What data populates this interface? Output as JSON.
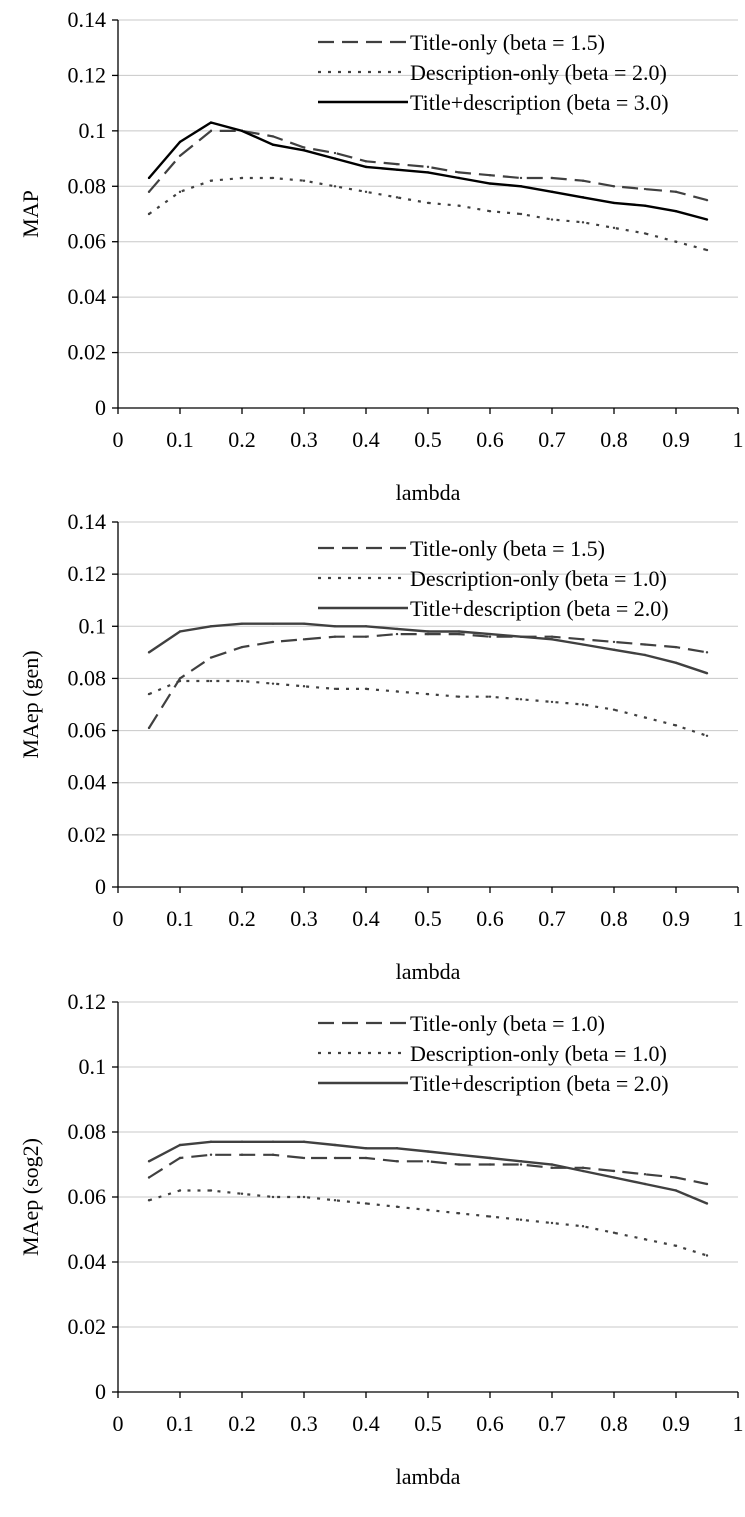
{
  "chart_data": [
    {
      "type": "line",
      "xlabel": "lambda",
      "ylabel": "MAP",
      "xlim": [
        0,
        1
      ],
      "ylim": [
        0,
        0.14
      ],
      "xticks": [
        "0",
        "0.1",
        "0.2",
        "0.3",
        "0.4",
        "0.5",
        "0.6",
        "0.7",
        "0.8",
        "0.9",
        "1"
      ],
      "yticks": [
        "0",
        "0.02",
        "0.04",
        "0.06",
        "0.08",
        "0.1",
        "0.12",
        "0.14"
      ],
      "grid": "horizontal",
      "legend": "top-right",
      "x": [
        0.05,
        0.1,
        0.15,
        0.2,
        0.25,
        0.3,
        0.35,
        0.4,
        0.45,
        0.5,
        0.55,
        0.6,
        0.65,
        0.7,
        0.75,
        0.8,
        0.85,
        0.9,
        0.95
      ],
      "series": [
        {
          "name": "Title-only (beta = 1.5)",
          "style": "dashed",
          "color": "#404040",
          "values": [
            0.078,
            0.091,
            0.1,
            0.1,
            0.098,
            0.094,
            0.092,
            0.089,
            0.088,
            0.087,
            0.085,
            0.084,
            0.083,
            0.083,
            0.082,
            0.08,
            0.079,
            0.078,
            0.075
          ]
        },
        {
          "name": "Description-only (beta = 2.0)",
          "style": "dotted",
          "color": "#404040",
          "values": [
            0.07,
            0.078,
            0.082,
            0.083,
            0.083,
            0.082,
            0.08,
            0.078,
            0.076,
            0.074,
            0.073,
            0.071,
            0.07,
            0.068,
            0.067,
            0.065,
            0.063,
            0.06,
            0.057
          ]
        },
        {
          "name": "Title+description (beta = 3.0)",
          "style": "solid",
          "color": "#000000",
          "values": [
            0.083,
            0.096,
            0.103,
            0.1,
            0.095,
            0.093,
            0.09,
            0.087,
            0.086,
            0.085,
            0.083,
            0.081,
            0.08,
            0.078,
            0.076,
            0.074,
            0.073,
            0.071,
            0.068
          ]
        }
      ]
    },
    {
      "type": "line",
      "xlabel": "lambda",
      "ylabel": "MAep (gen)",
      "xlim": [
        0,
        1
      ],
      "ylim": [
        0,
        0.14
      ],
      "xticks": [
        "0",
        "0.1",
        "0.2",
        "0.3",
        "0.4",
        "0.5",
        "0.6",
        "0.7",
        "0.8",
        "0.9",
        "1"
      ],
      "yticks": [
        "0",
        "0.02",
        "0.04",
        "0.06",
        "0.08",
        "0.1",
        "0.12",
        "0.14"
      ],
      "grid": "horizontal",
      "legend": "top-right",
      "x": [
        0.05,
        0.1,
        0.15,
        0.2,
        0.25,
        0.3,
        0.35,
        0.4,
        0.45,
        0.5,
        0.55,
        0.6,
        0.65,
        0.7,
        0.75,
        0.8,
        0.85,
        0.9,
        0.95
      ],
      "series": [
        {
          "name": "Title-only (beta = 1.5)",
          "style": "dashed",
          "color": "#404040",
          "values": [
            0.061,
            0.08,
            0.088,
            0.092,
            0.094,
            0.095,
            0.096,
            0.096,
            0.097,
            0.097,
            0.097,
            0.096,
            0.096,
            0.096,
            0.095,
            0.094,
            0.093,
            0.092,
            0.09
          ]
        },
        {
          "name": "Description-only (beta = 1.0)",
          "style": "dotted",
          "color": "#404040",
          "values": [
            0.074,
            0.079,
            0.079,
            0.079,
            0.078,
            0.077,
            0.076,
            0.076,
            0.075,
            0.074,
            0.073,
            0.073,
            0.072,
            0.071,
            0.07,
            0.068,
            0.065,
            0.062,
            0.058
          ]
        },
        {
          "name": "Title+description (beta = 2.0)",
          "style": "solid",
          "color": "#404040",
          "values": [
            0.09,
            0.098,
            0.1,
            0.101,
            0.101,
            0.101,
            0.1,
            0.1,
            0.099,
            0.098,
            0.098,
            0.097,
            0.096,
            0.095,
            0.093,
            0.091,
            0.089,
            0.086,
            0.082
          ]
        }
      ]
    },
    {
      "type": "line",
      "xlabel": "lambda",
      "ylabel": "MAep (sog2)",
      "xlim": [
        0,
        1
      ],
      "ylim": [
        0,
        0.12
      ],
      "xticks": [
        "0",
        "0.1",
        "0.2",
        "0.3",
        "0.4",
        "0.5",
        "0.6",
        "0.7",
        "0.8",
        "0.9",
        "1"
      ],
      "yticks": [
        "0",
        "0.02",
        "0.04",
        "0.06",
        "0.08",
        "0.1",
        "0.12"
      ],
      "grid": "horizontal",
      "legend": "top-right",
      "x": [
        0.05,
        0.1,
        0.15,
        0.2,
        0.25,
        0.3,
        0.35,
        0.4,
        0.45,
        0.5,
        0.55,
        0.6,
        0.65,
        0.7,
        0.75,
        0.8,
        0.85,
        0.9,
        0.95
      ],
      "series": [
        {
          "name": "Title-only (beta = 1.0)",
          "style": "dashed",
          "color": "#404040",
          "values": [
            0.066,
            0.072,
            0.073,
            0.073,
            0.073,
            0.072,
            0.072,
            0.072,
            0.071,
            0.071,
            0.07,
            0.07,
            0.07,
            0.069,
            0.069,
            0.068,
            0.067,
            0.066,
            0.064
          ]
        },
        {
          "name": "Description-only (beta = 1.0)",
          "style": "dotted",
          "color": "#404040",
          "values": [
            0.059,
            0.062,
            0.062,
            0.061,
            0.06,
            0.06,
            0.059,
            0.058,
            0.057,
            0.056,
            0.055,
            0.054,
            0.053,
            0.052,
            0.051,
            0.049,
            0.047,
            0.045,
            0.042
          ]
        },
        {
          "name": "Title+description (beta = 2.0)",
          "style": "solid",
          "color": "#404040",
          "values": [
            0.071,
            0.076,
            0.077,
            0.077,
            0.077,
            0.077,
            0.076,
            0.075,
            0.075,
            0.074,
            0.073,
            0.072,
            0.071,
            0.07,
            0.068,
            0.066,
            0.064,
            0.062,
            0.058
          ]
        }
      ]
    }
  ]
}
